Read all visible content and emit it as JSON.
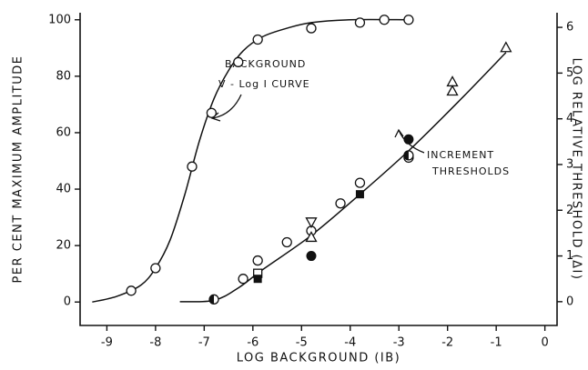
{
  "chart_data": {
    "type": "scatter",
    "xlabel": "LOG BACKGROUND (IB)",
    "ylabel": "PER CENT MAXIMUM AMPLITUDE",
    "y2label": "LOG RELATIVE THRESHOLD (ΔI)",
    "annotations": [
      "BACKGROUND",
      "V - Log I CURVE",
      "INCREMENT",
      "THRESHOLDS"
    ],
    "xlim": [
      -9.55,
      0.25
    ],
    "xticks": [
      -9,
      -8,
      -7,
      -6,
      -5,
      -4,
      -3,
      -2,
      -1,
      0
    ],
    "ylim": [
      -8.3,
      102.5
    ],
    "yticks": [
      0,
      20,
      40,
      60,
      80,
      100
    ],
    "y2lim": [
      -0.52,
      6.32
    ],
    "y2ticks": [
      0,
      1,
      2,
      3,
      4,
      5,
      6
    ],
    "color": "#111111",
    "series": [
      {
        "marker": "line",
        "axis": "y",
        "x": [
          -9.3,
          -8.8,
          -8.3,
          -8.0,
          -7.7,
          -7.4,
          -7.1,
          -6.8,
          -6.5,
          -6.2,
          -5.8,
          -5.3,
          -4.8,
          -4.0,
          -2.8
        ],
        "values": [
          0,
          2,
          6,
          12,
          22,
          38,
          57,
          72,
          82,
          89,
          94,
          97,
          99,
          100,
          100
        ]
      },
      {
        "marker": "circle-open",
        "axis": "y",
        "x": [
          -8.5,
          -8.0,
          -7.25,
          -6.85,
          -6.3,
          -5.9,
          -4.8,
          -3.8,
          -3.3,
          -2.8
        ],
        "values": [
          4,
          12,
          48,
          67,
          85,
          93,
          97,
          99,
          100,
          100
        ]
      },
      {
        "marker": "line",
        "axis": "y2",
        "x": [
          -7.5,
          -6.8,
          -6.3,
          -5.8,
          -4.8,
          -3.8,
          -2.8,
          -1.8,
          -0.8
        ],
        "values": [
          0,
          0.03,
          0.3,
          0.7,
          1.45,
          2.35,
          3.3,
          4.35,
          5.45
        ]
      },
      {
        "marker": "circle-open",
        "axis": "y2",
        "x": [
          -6.2,
          -5.9,
          -5.3,
          -4.8,
          -4.2,
          -3.8,
          -2.8
        ],
        "values": [
          0.5,
          0.9,
          1.3,
          1.55,
          2.15,
          2.6,
          3.15
        ]
      },
      {
        "marker": "circle-filled",
        "axis": "y2",
        "x": [
          -4.8,
          -2.8
        ],
        "values": [
          1.0,
          3.55
        ]
      },
      {
        "marker": "circle-half",
        "axis": "y2",
        "x": [
          -6.8,
          -2.8
        ],
        "values": [
          0.05,
          3.2
        ]
      },
      {
        "marker": "square-open",
        "axis": "y2",
        "x": [
          -5.9
        ],
        "values": [
          0.62
        ]
      },
      {
        "marker": "square-filled",
        "axis": "y2",
        "x": [
          -5.9,
          -3.8
        ],
        "values": [
          0.5,
          2.35
        ]
      },
      {
        "marker": "triangle-up",
        "axis": "y2",
        "x": [
          -4.8,
          -1.9,
          -1.9,
          -0.8
        ],
        "values": [
          1.4,
          4.8,
          4.6,
          5.55
        ]
      },
      {
        "marker": "triangle-down",
        "axis": "y2",
        "x": [
          -4.8
        ],
        "values": [
          1.75
        ]
      }
    ]
  }
}
